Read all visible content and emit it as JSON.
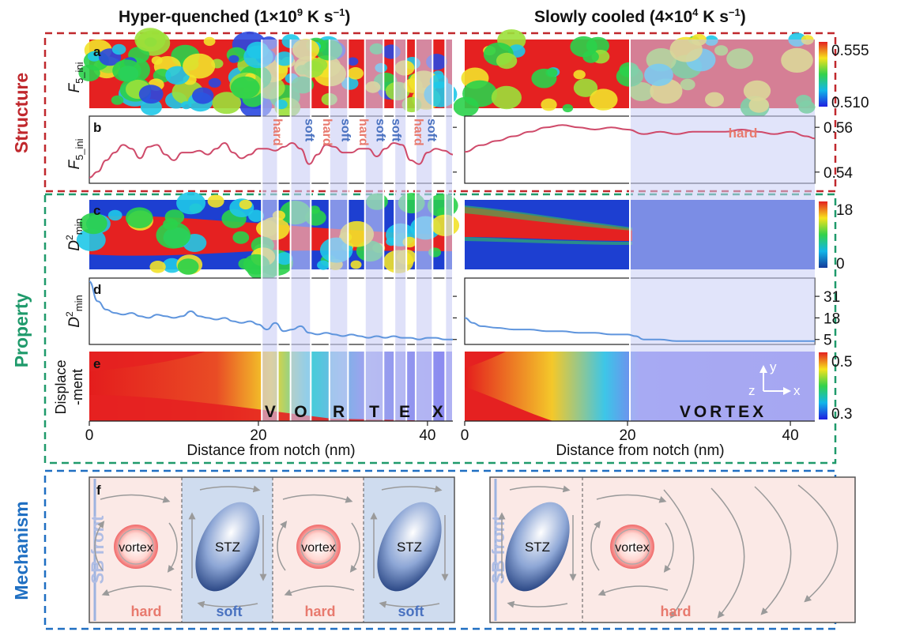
{
  "headers": {
    "left": {
      "prefix": "Hyper-quenched (1×10",
      "exp": "9",
      "suffix": " K s",
      "unit_exp": "−1",
      ")": ")"
    },
    "right": {
      "prefix": "Slowly cooled (4×10",
      "exp": "4",
      "suffix": " K s",
      "unit_exp": "−1",
      ")": ")"
    }
  },
  "sections": {
    "structure": "Structure",
    "property": "Property",
    "mechanism": "Mechanism"
  },
  "panels": {
    "a": "a",
    "b": "b",
    "c": "c",
    "d": "d",
    "e": "e",
    "f": "f"
  },
  "ylabels": {
    "f5_main": "F",
    "f5_sub": "5_ini",
    "d2_main": "D",
    "d2_sup": "2",
    "d2_sub": "min",
    "disp_1": "Displace",
    "disp_2": "-ment"
  },
  "colorbars": {
    "a": {
      "max": "0.555",
      "min": "0.510"
    },
    "c": {
      "max": "18",
      "min": "0"
    },
    "e": {
      "max": "0.5",
      "min": "0.3"
    }
  },
  "chart_data": [
    {
      "type": "line",
      "panel": "b-left",
      "x": [
        0,
        1,
        2,
        3,
        4,
        5,
        6,
        7,
        8,
        9,
        10,
        11,
        12,
        13,
        14,
        15,
        16,
        17,
        18,
        19,
        20,
        21,
        22,
        23,
        24,
        25,
        26,
        27,
        28,
        29,
        30,
        31,
        32,
        33,
        34,
        35,
        36,
        37,
        38,
        39,
        40,
        41,
        42,
        43
      ],
      "values": [
        0.533,
        0.536,
        0.542,
        0.546,
        0.55,
        0.548,
        0.543,
        0.549,
        0.55,
        0.545,
        0.542,
        0.546,
        0.546,
        0.547,
        0.545,
        0.548,
        0.551,
        0.546,
        0.543,
        0.545,
        0.548,
        0.548,
        0.547,
        0.549,
        0.551,
        0.548,
        0.54,
        0.545,
        0.55,
        0.549,
        0.546,
        0.546,
        0.548,
        0.548,
        0.544,
        0.548,
        0.551,
        0.55,
        0.542,
        0.54,
        0.546,
        0.548,
        0.547,
        0.545
      ]
    },
    {
      "type": "line",
      "panel": "b-right",
      "yticks": [
        "0.56",
        "0.54"
      ],
      "x": [
        0,
        2,
        4,
        6,
        8,
        10,
        12,
        14,
        16,
        18,
        20,
        22,
        24,
        26,
        28,
        30,
        32,
        34,
        36,
        38,
        40,
        42,
        43
      ],
      "values": [
        0.549,
        0.552,
        0.554,
        0.556,
        0.558,
        0.56,
        0.561,
        0.56,
        0.559,
        0.56,
        0.559,
        0.557,
        0.558,
        0.557,
        0.558,
        0.558,
        0.558,
        0.559,
        0.558,
        0.557,
        0.558,
        0.556,
        0.555
      ]
    },
    {
      "type": "line",
      "panel": "d-left",
      "x": [
        0,
        1,
        2,
        3,
        4,
        5,
        6,
        7,
        8,
        9,
        10,
        11,
        12,
        13,
        14,
        15,
        16,
        17,
        18,
        19,
        20,
        21,
        22,
        23,
        24,
        25,
        26,
        27,
        28,
        29,
        30,
        31,
        32,
        33,
        34,
        35,
        36,
        37,
        38,
        39,
        40,
        41,
        42,
        43
      ],
      "values": [
        40,
        28,
        23,
        21,
        20,
        21,
        19,
        18,
        20,
        19,
        18,
        19,
        22,
        19,
        18,
        17,
        18,
        16,
        15,
        16,
        14,
        11,
        15,
        10,
        11,
        13,
        9,
        8,
        9,
        8,
        7,
        8,
        7,
        6,
        7,
        6,
        7,
        6,
        6,
        5,
        6,
        6,
        5,
        5
      ]
    },
    {
      "type": "line",
      "panel": "d-right",
      "yticks": [
        "31",
        "18",
        "5"
      ],
      "x": [
        0,
        1,
        2,
        4,
        6,
        8,
        10,
        12,
        14,
        16,
        18,
        20,
        21,
        22,
        24,
        26,
        28,
        30,
        32,
        34,
        36,
        38,
        40,
        42,
        43
      ],
      "values": [
        18,
        15,
        13,
        12,
        11,
        11,
        10,
        10,
        9,
        9,
        8,
        8,
        7,
        5,
        5,
        4,
        4,
        4,
        4,
        4,
        4,
        4,
        4,
        4,
        4
      ]
    }
  ],
  "band_labels": [
    "hard",
    "soft",
    "hard",
    "soft",
    "hard",
    "soft",
    "soft",
    "hard",
    "soft"
  ],
  "right_band_label": "hard",
  "vortex_letters": [
    "V",
    "O",
    "R",
    "T",
    "E",
    "X"
  ],
  "vortex_word": "VORTEX",
  "axes": {
    "x_ticks": [
      "0",
      "20",
      "40"
    ],
    "x_label": "Distance from notch (nm)"
  },
  "axis_glyphs": {
    "y": "y",
    "x": "x",
    "z": "z"
  },
  "mechanism": {
    "sb_front": "SB front",
    "vortex": "vortex",
    "stz": "STZ",
    "hard": "hard",
    "soft": "soft"
  },
  "colors": {
    "structure_border": "#c0282d",
    "property_border": "#1f9a6b",
    "mechanism_border": "#1f6fc2",
    "hard_label": "#e87a6e",
    "soft_label": "#4a72c0",
    "curve": "#cf4a6a",
    "curve_d": "#5f95dd",
    "band": "#c9cdf5",
    "hard_bg": "#fbe9e6",
    "soft_bg": "#cfdcef"
  }
}
